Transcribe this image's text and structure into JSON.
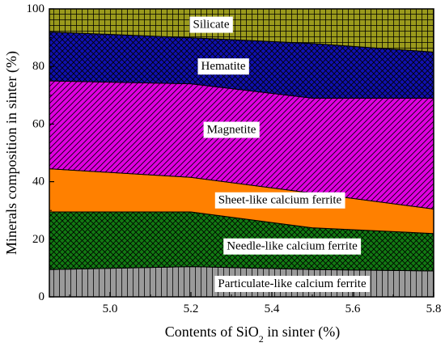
{
  "chart_data": {
    "type": "area",
    "stacked": true,
    "x": [
      4.85,
      5.2,
      5.5,
      5.8
    ],
    "xlim": [
      4.85,
      5.8
    ],
    "ylim": [
      0,
      100
    ],
    "xticks": [
      "5.0",
      "5.2",
      "5.4",
      "5.6",
      "5.8"
    ],
    "xtick_values": [
      5.0,
      5.2,
      5.4,
      5.6,
      5.8
    ],
    "yticks": [
      "0",
      "20",
      "40",
      "60",
      "80",
      "100"
    ],
    "ytick_values": [
      0,
      20,
      40,
      60,
      80,
      100
    ],
    "xlabel_prefix": "Contents of SiO",
    "xlabel_sub": "2",
    "xlabel_suffix": " in sinter (%)",
    "ylabel": "Minerals composition in sinter (%)",
    "series": [
      {
        "name": "Particulate-like calcium ferrite",
        "values": [
          9.5,
          10.5,
          9.5,
          9.0
        ],
        "color": "#9a9a9a",
        "pattern": "vlines",
        "label_at": [
          5.45,
          4.5
        ]
      },
      {
        "name": "Needle-like calcium ferrite",
        "values": [
          20.0,
          19.0,
          14.5,
          13.0
        ],
        "color": "#127a12",
        "pattern": "crosshatch",
        "label_at": [
          5.45,
          17.5
        ]
      },
      {
        "name": "Sheet-like calcium ferrite",
        "values": [
          15.0,
          12.0,
          12.0,
          8.5
        ],
        "color": "#ff8000",
        "pattern": "none",
        "label_at": [
          5.42,
          33.5
        ]
      },
      {
        "name": "Magnetite",
        "values": [
          30.5,
          32.5,
          33.0,
          38.5
        ],
        "color": "#e000e0",
        "pattern": "diag",
        "label_at": [
          5.3,
          58.0
        ]
      },
      {
        "name": "Hematite",
        "values": [
          17.0,
          16.0,
          19.0,
          16.0
        ],
        "color": "#1010b0",
        "pattern": "crosshatch",
        "label_at": [
          5.28,
          80.0
        ]
      },
      {
        "name": "Silicate",
        "values": [
          8.0,
          10.0,
          12.0,
          15.0
        ],
        "color": "#9a9a1c",
        "pattern": "grid",
        "label_at": [
          5.25,
          94.5
        ]
      }
    ]
  }
}
